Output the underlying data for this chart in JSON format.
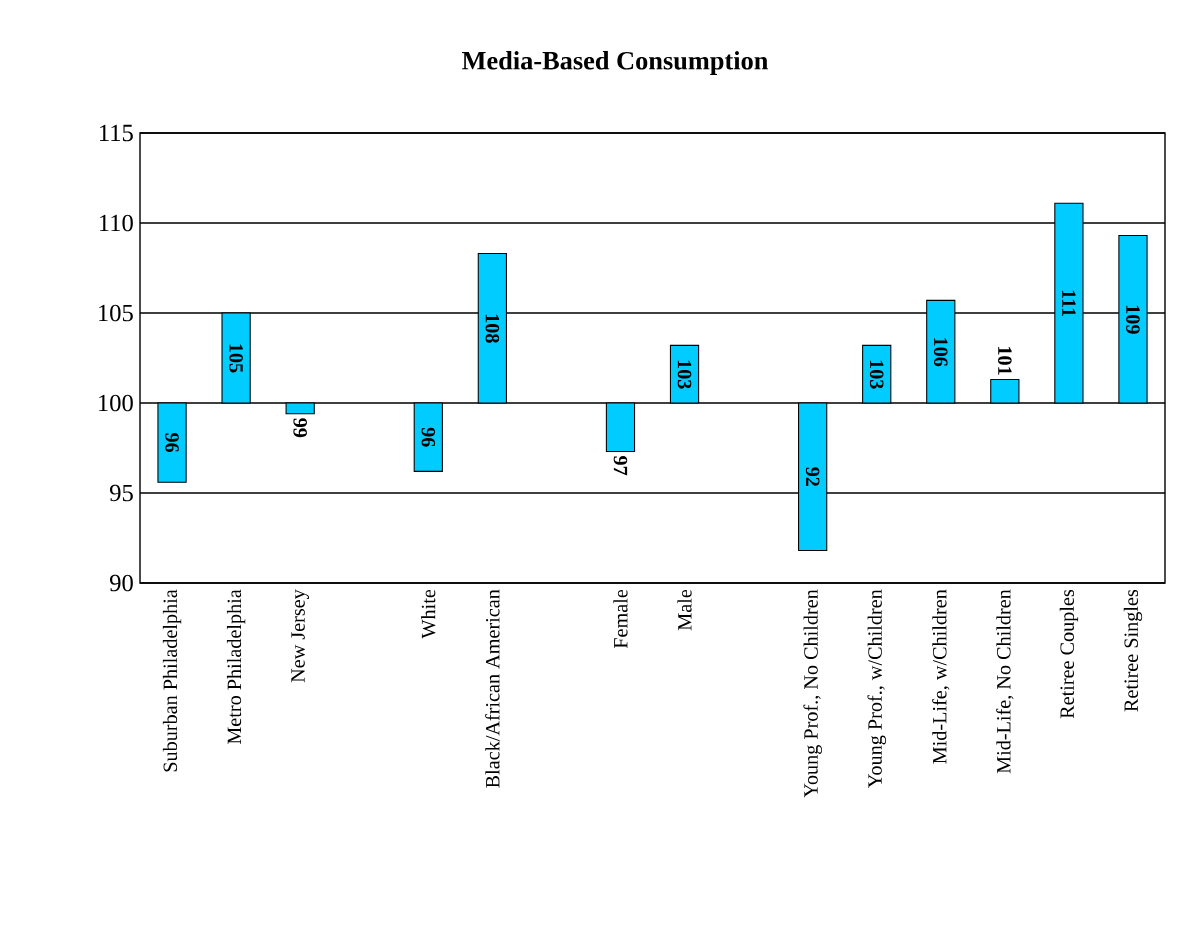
{
  "chart_data": {
    "type": "bar",
    "title": "Media-Based Consumption",
    "categories": [
      "Suburban Philadelphia",
      "Metro Philadelphia",
      "New Jersey",
      null,
      "White",
      "Black/African American",
      null,
      "Female",
      "Male",
      null,
      "Young Prof., No Children",
      "Young Prof., w/Children",
      "Mid-Life, w/Children",
      "Mid-Life, No Children",
      "Retiree Couples",
      "Retiree Singles"
    ],
    "values": [
      -4.4,
      5.0,
      -0.6,
      null,
      -3.8,
      8.3,
      null,
      -2.7,
      3.2,
      null,
      -8.2,
      3.2,
      5.7,
      1.3,
      11.1,
      9.3
    ],
    "base": [
      100,
      100,
      100,
      null,
      100,
      100,
      null,
      100,
      100,
      null,
      100,
      100,
      100,
      100,
      100,
      100
    ],
    "value_labels": [
      "96",
      "105",
      "99",
      null,
      "96",
      "108",
      null,
      "97",
      "103",
      null,
      "92",
      "103",
      "106",
      "101",
      "111",
      "109"
    ],
    "color": "#00ccff",
    "ylim": [
      90,
      115
    ],
    "yticks": [
      90,
      95,
      100,
      105,
      110,
      115
    ],
    "grid": "y"
  }
}
